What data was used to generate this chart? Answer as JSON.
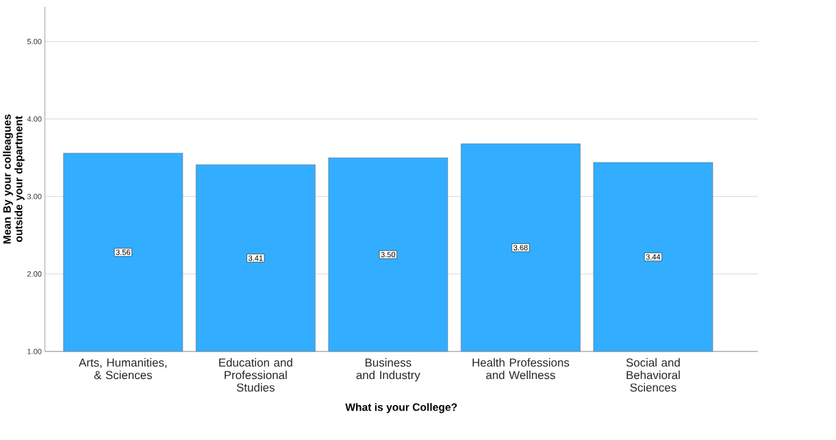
{
  "chart_data": {
    "type": "bar",
    "xlabel": "What is your College?",
    "ylabel": "Mean By your colleagues outside your department",
    "categories": [
      "Arts, Humanities, & Sciences",
      "Education and Professional Studies",
      "Business and Industry",
      "Health Professions and Wellness",
      "Social and Behavioral Sciences"
    ],
    "values": [
      3.56,
      3.41,
      3.5,
      3.68,
      3.44
    ],
    "value_labels": [
      "3.56",
      "3.41",
      "3.50",
      "3.68",
      "3.44"
    ],
    "color": "#33adff",
    "ylim": [
      1,
      5.45
    ],
    "yticks": [
      {
        "value": 1,
        "label": "1.00"
      },
      {
        "value": 2,
        "label": "2.00"
      },
      {
        "value": 3,
        "label": "3.00"
      },
      {
        "value": 4,
        "label": "4.00"
      },
      {
        "value": 5,
        "label": "5.00"
      }
    ],
    "grid": "y"
  }
}
